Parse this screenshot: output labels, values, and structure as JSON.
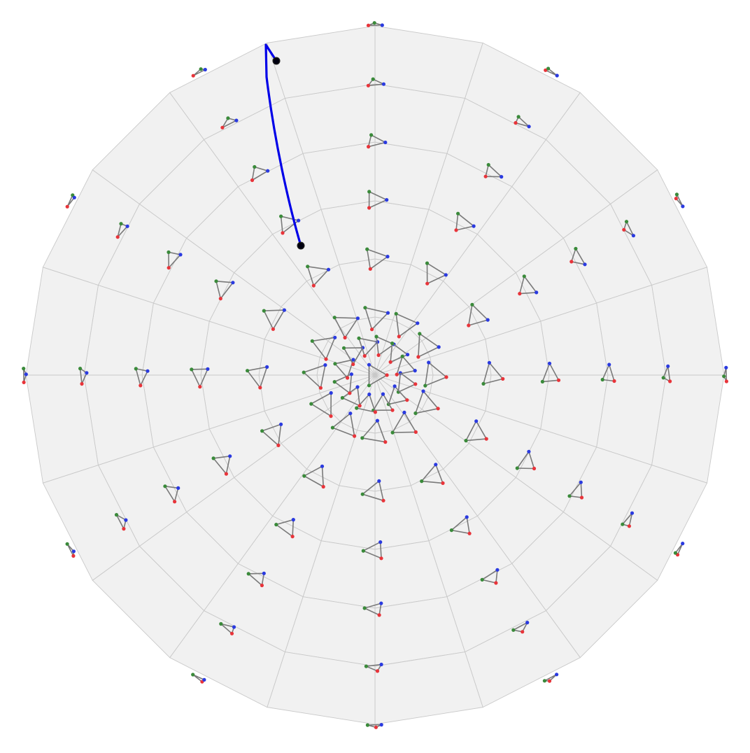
{
  "view": {
    "rings": 6,
    "sectors": 20
  },
  "colors": {
    "disk_fill": "#f1f1f1",
    "grid_line": "#c9c9c9",
    "edge": "#7a7a7a",
    "vertex_red": "#e8343a",
    "vertex_green": "#3a8a3a",
    "vertex_blue": "#2a3ae0",
    "path": "#0000e8",
    "path_endpoint": "#000010"
  },
  "triangle_field": {
    "spokes": 12,
    "radial_steps": 6,
    "base_size": 19,
    "vertex_angles_deg": [
      0,
      120,
      240
    ],
    "note_shape": "equilateral triangles with red, green and blue vertices, shrinking and shearing toward the boundary"
  },
  "path": {
    "label": "",
    "start_marker": "path-start",
    "end_marker": "path-end"
  }
}
